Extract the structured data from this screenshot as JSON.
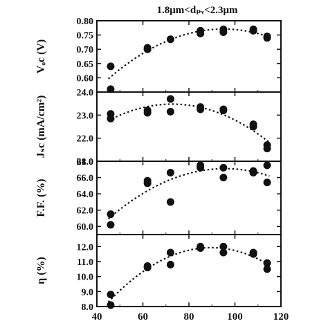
{
  "chart_data": {
    "type": "scatter",
    "title": "1.8μm<dₚᵥ<2.3μm",
    "xlabel": "",
    "xlim": [
      40,
      120
    ],
    "xticks": [
      "40",
      "60",
      "80",
      "100",
      "120"
    ],
    "panels": [
      {
        "ylabel": "Vₒc (V)",
        "ylim": [
          0.55,
          0.8
        ],
        "yticks": [
          "0.60",
          "0.65",
          "0.70",
          "0.75",
          "0.80"
        ],
        "trend": true,
        "points": [
          [
            46,
            0.64
          ],
          [
            46,
            0.56
          ],
          [
            62,
            0.7
          ],
          [
            62,
            0.705
          ],
          [
            72,
            0.735
          ],
          [
            85,
            0.765
          ],
          [
            85,
            0.755
          ],
          [
            95,
            0.77
          ],
          [
            95,
            0.76
          ],
          [
            108,
            0.77
          ],
          [
            108,
            0.765
          ],
          [
            114,
            0.745
          ],
          [
            114,
            0.74
          ]
        ]
      },
      {
        "ylabel": "Jₛc (mA/cm²)",
        "ylim": [
          21.0,
          24.0
        ],
        "yticks": [
          "21.0",
          "22.0",
          "23.0",
          "24.0"
        ],
        "trend": true,
        "points": [
          [
            46,
            23.05
          ],
          [
            46,
            22.85
          ],
          [
            62,
            23.2
          ],
          [
            62,
            23.1
          ],
          [
            72,
            23.7
          ],
          [
            72,
            23.15
          ],
          [
            85,
            23.35
          ],
          [
            85,
            23.25
          ],
          [
            95,
            23.2
          ],
          [
            95,
            23.25
          ],
          [
            108,
            22.6
          ],
          [
            108,
            22.5
          ],
          [
            114,
            21.7
          ],
          [
            114,
            21.55
          ]
        ]
      },
      {
        "ylabel": "F.F. (%)",
        "ylim": [
          59.0,
          68.0
        ],
        "yticks": [
          "60.0",
          "62.0",
          "64.0",
          "66.0",
          "68.0"
        ],
        "trend": true,
        "points": [
          [
            46,
            61.5
          ],
          [
            46,
            60.2
          ],
          [
            62,
            65.6
          ],
          [
            62,
            65.3
          ],
          [
            72,
            66.6
          ],
          [
            72,
            63.0
          ],
          [
            85,
            67.5
          ],
          [
            85,
            67.2
          ],
          [
            95,
            67.2
          ],
          [
            95,
            66.0
          ],
          [
            108,
            66.8
          ],
          [
            108,
            66.6
          ],
          [
            114,
            67.5
          ],
          [
            114,
            65.4
          ]
        ]
      },
      {
        "ylabel": "η (%)",
        "ylim": [
          8.0,
          12.8
        ],
        "yticks": [
          "8.0",
          "9.0",
          "10.0",
          "11.0",
          "12.0"
        ],
        "trend": true,
        "points": [
          [
            46,
            8.8
          ],
          [
            46,
            8.1
          ],
          [
            62,
            10.7
          ],
          [
            62,
            10.6
          ],
          [
            72,
            11.6
          ],
          [
            72,
            10.8
          ],
          [
            85,
            12.0
          ],
          [
            85,
            11.9
          ],
          [
            95,
            12.0
          ],
          [
            95,
            11.6
          ],
          [
            108,
            11.6
          ],
          [
            108,
            11.5
          ],
          [
            114,
            10.9
          ],
          [
            114,
            10.5
          ]
        ]
      }
    ]
  }
}
